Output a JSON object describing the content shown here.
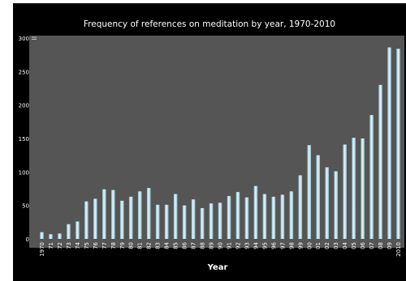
{
  "chart_data": {
    "type": "bar",
    "title": "Frequency of references on meditation by year, 1970-2010",
    "xlabel": "Year",
    "ylabel": "",
    "ylim": [
      0,
      300
    ],
    "yticks": [
      "0",
      "50",
      "100",
      "150",
      "200",
      "250",
      "300"
    ],
    "grid": false,
    "legend": "none",
    "categories": [
      "1970",
      "71",
      "72",
      "73",
      "74",
      "75",
      "76",
      "77",
      "78",
      "79",
      "80",
      "81",
      "82",
      "83",
      "84",
      "85",
      "86",
      "87",
      "88",
      "89",
      "90",
      "91",
      "92",
      "93",
      "94",
      "95",
      "96",
      "97",
      "98",
      "99",
      "00",
      "01",
      "02",
      "03",
      "04",
      "05",
      "06",
      "07",
      "08",
      "09",
      "2010"
    ],
    "values": [
      10,
      7,
      8,
      22,
      26,
      56,
      60,
      74,
      73,
      57,
      63,
      71,
      76,
      51,
      51,
      67,
      50,
      59,
      46,
      53,
      54,
      64,
      70,
      62,
      79,
      67,
      63,
      66,
      71,
      95,
      140,
      125,
      107,
      101,
      141,
      151,
      150,
      185,
      230,
      286,
      284
    ],
    "colors": {
      "background": "#000000",
      "plot": "#555555",
      "bar_light": "#e6f2f6",
      "bar_dark": "#7fb4c6",
      "text": "#ffffff"
    }
  }
}
